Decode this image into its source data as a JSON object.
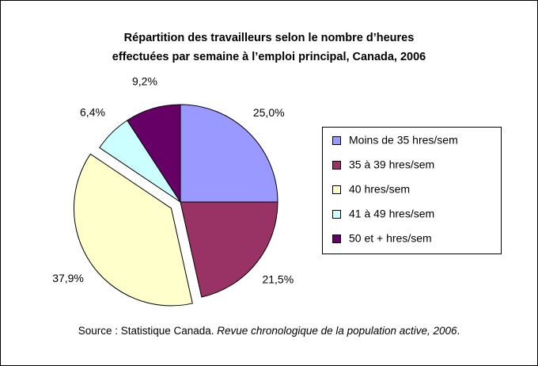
{
  "chart_data": {
    "type": "pie",
    "title": [
      "Répartition des travailleurs selon le nombre d’heures",
      "effectuées par semaine à l’emploi principal, Canada, 2006"
    ],
    "categories": [
      "Moins de 35 hres/sem",
      "35 à 39 hres/sem",
      "40 hres/sem",
      "41 à 49 hres/sem",
      "50 et + hres/sem"
    ],
    "values": [
      25.0,
      21.5,
      37.9,
      6.4,
      9.2
    ],
    "value_labels": [
      "25,0%",
      "21,5%",
      "37,9%",
      "6,4%",
      "9,2%"
    ],
    "colors": [
      "#9999ff",
      "#993366",
      "#ffffcc",
      "#ccffff",
      "#660066"
    ],
    "exploded": [
      false,
      false,
      true,
      false,
      false
    ],
    "legend": "right",
    "source": [
      "Source : Statistique Canada. ",
      "Revue chronologique de la population active, 2006",
      "."
    ]
  }
}
